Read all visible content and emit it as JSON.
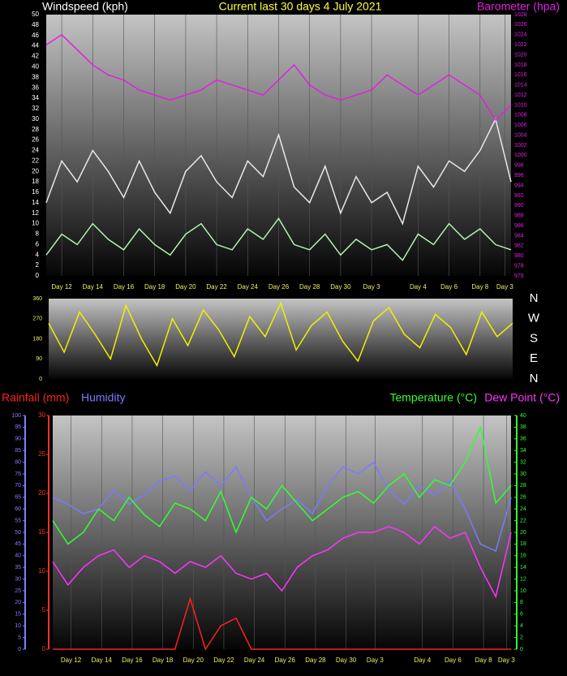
{
  "chart_data": [
    {
      "type": "line",
      "title": "Current last 30 days 4 July 2021",
      "ylabel": "Windspeed (kph)",
      "y2label": "Barometer (hpa)",
      "x": [
        0,
        1,
        2,
        3,
        4,
        5,
        6,
        7,
        8,
        9,
        10,
        11,
        12,
        13,
        14,
        15,
        16,
        17,
        18,
        19,
        20,
        21,
        22,
        23,
        24,
        25,
        26,
        27,
        28,
        29,
        30
      ],
      "xlim": [
        0,
        30
      ],
      "xticks": [
        {
          "value": 1,
          "label": "Day 12"
        },
        {
          "value": 3,
          "label": "Day 14"
        },
        {
          "value": 5,
          "label": "Day 16"
        },
        {
          "value": 7,
          "label": "Day 18"
        },
        {
          "value": 9,
          "label": "Day 20"
        },
        {
          "value": 11,
          "label": "Day 22"
        },
        {
          "value": 13,
          "label": "Day 24"
        },
        {
          "value": 15,
          "label": "Day 26"
        },
        {
          "value": 17,
          "label": "Day 28"
        },
        {
          "value": 19,
          "label": "Day 30"
        },
        {
          "value": 21,
          "label": "Day 3"
        },
        {
          "value": 24,
          "label": "Day 4"
        },
        {
          "value": 26,
          "label": "Day 6"
        },
        {
          "value": 28,
          "label": "Day 8"
        },
        {
          "value": 29.6,
          "label": "Day 3"
        }
      ],
      "ylim": [
        0,
        50
      ],
      "yticks": [
        0,
        2,
        4,
        6,
        8,
        10,
        12,
        14,
        16,
        18,
        20,
        22,
        24,
        26,
        28,
        30,
        32,
        34,
        36,
        38,
        40,
        42,
        44,
        46,
        48,
        50
      ],
      "y2lim": [
        976,
        1028
      ],
      "y2ticks": [
        976,
        978,
        980,
        982,
        984,
        986,
        988,
        990,
        992,
        994,
        996,
        998,
        1000,
        1002,
        1004,
        1006,
        1008,
        1010,
        1012,
        1014,
        1016,
        1018,
        1020,
        1022,
        1024,
        1026,
        1028
      ],
      "grid": true,
      "series": [
        {
          "color": "#e8e8e8",
          "values": [
            14,
            22,
            18,
            24,
            20,
            15,
            22,
            16,
            12,
            20,
            23,
            18,
            15,
            22,
            19,
            27,
            17,
            14,
            21,
            12,
            19,
            14,
            16,
            10,
            21,
            17,
            22,
            20,
            24,
            30,
            18
          ]
        },
        {
          "color": "#aef5ae",
          "values": [
            4,
            8,
            6,
            10,
            7,
            5,
            9,
            6,
            4,
            8,
            10,
            6,
            5,
            9,
            7,
            11,
            6,
            5,
            8,
            4,
            7,
            5,
            6,
            3,
            8,
            6,
            10,
            7,
            9,
            6,
            5
          ]
        },
        {
          "color": "#e020e0",
          "axis": "y2",
          "values": [
            1022,
            1024,
            1021,
            1018,
            1016,
            1015,
            1013,
            1012,
            1011,
            1012,
            1013,
            1015,
            1014,
            1013,
            1012,
            1015,
            1018,
            1014,
            1012,
            1011,
            1012,
            1013,
            1016,
            1014,
            1012,
            1014,
            1016,
            1014,
            1012,
            1007,
            1010
          ]
        }
      ]
    },
    {
      "type": "line",
      "x": [
        0,
        1,
        2,
        3,
        4,
        5,
        6,
        7,
        8,
        9,
        10,
        11,
        12,
        13,
        14,
        15,
        16,
        17,
        18,
        19,
        20,
        21,
        22,
        23,
        24,
        25,
        26,
        27,
        28,
        29,
        30
      ],
      "xlim": [
        0,
        30
      ],
      "ylim": [
        0,
        360
      ],
      "yticks": [
        0,
        90,
        180,
        270,
        360
      ],
      "y2lim": [
        0,
        360
      ],
      "y2ticks": [
        {
          "value": 360,
          "label": "N"
        },
        {
          "value": 270,
          "label": "W"
        },
        {
          "value": 180,
          "label": "S"
        },
        {
          "value": 90,
          "label": "E"
        },
        {
          "value": 0,
          "label": "N"
        }
      ],
      "series": [
        {
          "color": "#f0f000",
          "values": [
            250,
            120,
            300,
            200,
            90,
            330,
            180,
            60,
            270,
            150,
            310,
            220,
            100,
            280,
            190,
            340,
            130,
            240,
            300,
            170,
            80,
            260,
            320,
            200,
            140,
            290,
            230,
            110,
            300,
            190,
            250
          ]
        }
      ]
    },
    {
      "type": "line",
      "x": [
        0,
        1,
        2,
        3,
        4,
        5,
        6,
        7,
        8,
        9,
        10,
        11,
        12,
        13,
        14,
        15,
        16,
        17,
        18,
        19,
        20,
        21,
        22,
        23,
        24,
        25,
        26,
        27,
        28,
        29,
        30
      ],
      "xlim": [
        0,
        30
      ],
      "xticks": [
        {
          "value": 1.2,
          "label": "Day 12"
        },
        {
          "value": 3.2,
          "label": "Day 14"
        },
        {
          "value": 5.2,
          "label": "Day 16"
        },
        {
          "value": 7.2,
          "label": "Day 18"
        },
        {
          "value": 9.2,
          "label": "Day 20"
        },
        {
          "value": 11.2,
          "label": "Day 22"
        },
        {
          "value": 13.2,
          "label": "Day 24"
        },
        {
          "value": 15.2,
          "label": "Day 26"
        },
        {
          "value": 17.2,
          "label": "Day 28"
        },
        {
          "value": 19.2,
          "label": "Day 30"
        },
        {
          "value": 21.1,
          "label": "Day 3"
        },
        {
          "value": 24.2,
          "label": "Day 4"
        },
        {
          "value": 26.2,
          "label": "Day 6"
        },
        {
          "value": 28.2,
          "label": "Day 8"
        },
        {
          "value": 29.7,
          "label": "Day 3"
        }
      ],
      "ylim": [
        0,
        30
      ],
      "yticks": [
        0,
        5,
        10,
        15,
        20,
        25,
        30
      ],
      "y3lim": [
        0,
        100
      ],
      "y3ticks": [
        0,
        5,
        10,
        15,
        20,
        25,
        30,
        35,
        40,
        45,
        50,
        55,
        60,
        65,
        70,
        75,
        80,
        85,
        90,
        95,
        100
      ],
      "y2lim": [
        0,
        40
      ],
      "y2ticks": [
        0,
        2,
        4,
        6,
        8,
        10,
        12,
        14,
        16,
        18,
        20,
        22,
        24,
        26,
        28,
        30,
        32,
        34,
        36,
        38,
        40
      ],
      "grid": true,
      "series": [
        {
          "name": "Rainfall (mm)",
          "color": "#ff2020",
          "values": [
            0,
            0,
            0,
            0,
            0,
            0,
            0,
            0,
            0,
            6.5,
            0,
            3,
            4,
            0,
            0,
            0,
            0,
            0,
            0,
            0,
            0,
            0,
            0,
            0,
            0,
            0,
            0,
            0,
            0,
            0,
            0
          ]
        },
        {
          "name": "Humidity",
          "color": "#7a7aff",
          "axis": "y3",
          "values": [
            65,
            62,
            58,
            60,
            68,
            62,
            66,
            72,
            74,
            68,
            76,
            70,
            78,
            65,
            55,
            60,
            64,
            58,
            70,
            78,
            75,
            80,
            68,
            62,
            70,
            66,
            72,
            60,
            45,
            42,
            65
          ]
        },
        {
          "name": "Temperature (°C)",
          "color": "#33ff33",
          "axis": "y2",
          "values": [
            22,
            18,
            20,
            24,
            22,
            26,
            23,
            21,
            25,
            24,
            22,
            27,
            20,
            26,
            24,
            28,
            25,
            22,
            24,
            26,
            27,
            25,
            28,
            30,
            26,
            29,
            28,
            32,
            38,
            25,
            28
          ]
        },
        {
          "name": "Dew Point (°C)",
          "color": "#ff33ff",
          "axis": "y2",
          "values": [
            15,
            11,
            14,
            16,
            17,
            14,
            16,
            15,
            13,
            15,
            14,
            16,
            13,
            12,
            13,
            10,
            14,
            16,
            17,
            19,
            20,
            20,
            21,
            20,
            18,
            21,
            19,
            20,
            14,
            9,
            20
          ]
        }
      ]
    }
  ]
}
